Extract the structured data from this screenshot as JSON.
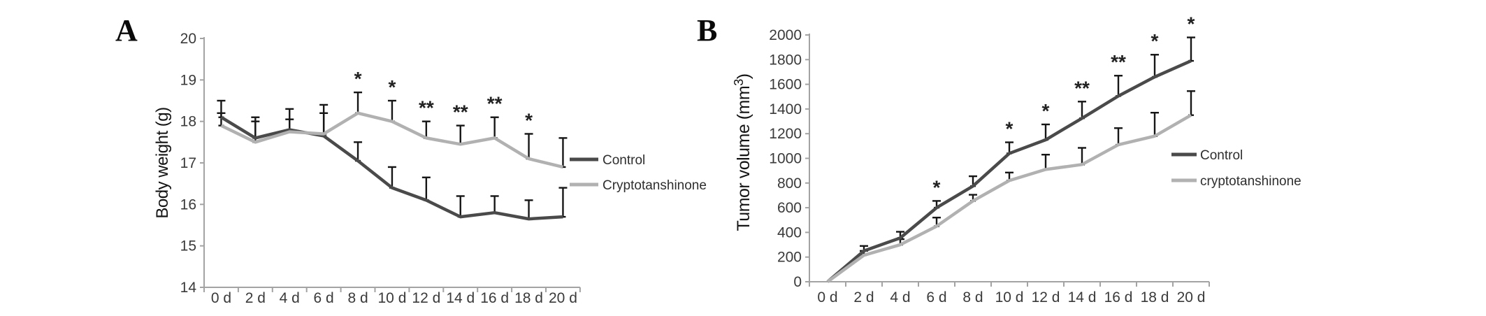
{
  "figure": {
    "background": "#ffffff",
    "colors": {
      "control_line": "#4a4a4a",
      "treatment_line": "#b1b1b1",
      "error_bar": "#161616",
      "axis": "#a3a3a3",
      "tick_text": "#3a3a3a"
    }
  },
  "chart_data": [
    {
      "type": "line",
      "panel_label": "A",
      "ylabel": "Body weight (g)",
      "xlabel": "",
      "ylim": [
        14,
        20
      ],
      "ytick_step": 1,
      "grid": false,
      "legend_position": "right-middle",
      "categories": [
        "0 d",
        "2 d",
        "4 d",
        "6 d",
        "8 d",
        "10 d",
        "12 d",
        "14 d",
        "16 d",
        "18 d",
        "20 d"
      ],
      "series": [
        {
          "name": "Control",
          "color": "#4a4a4a",
          "values": [
            18.1,
            17.6,
            17.8,
            17.65,
            17.05,
            16.4,
            16.1,
            15.7,
            15.8,
            15.65,
            15.7
          ],
          "err_top": [
            18.5,
            18.1,
            18.3,
            18.4,
            17.5,
            16.9,
            16.65,
            16.2,
            16.2,
            16.1,
            16.4
          ]
        },
        {
          "name": "Cryptotanshinone",
          "color": "#b1b1b1",
          "values": [
            17.9,
            17.5,
            17.75,
            17.7,
            18.2,
            18.0,
            17.6,
            17.45,
            17.6,
            17.1,
            16.9
          ],
          "err_top": [
            18.2,
            18.0,
            18.05,
            18.2,
            18.7,
            18.5,
            18.0,
            17.9,
            18.1,
            17.7,
            17.6
          ]
        }
      ],
      "significance": {
        "above_series_index": 1,
        "marks": [
          {
            "index": 4,
            "category": "8 d",
            "label": "*"
          },
          {
            "index": 5,
            "category": "10 d",
            "label": "*"
          },
          {
            "index": 6,
            "category": "12 d",
            "label": "**"
          },
          {
            "index": 7,
            "category": "14 d",
            "label": "**"
          },
          {
            "index": 8,
            "category": "16 d",
            "label": "**"
          },
          {
            "index": 9,
            "category": "18 d",
            "label": "*"
          }
        ]
      }
    },
    {
      "type": "line",
      "panel_label": "B",
      "ylabel": "Tumor volume (mm³)",
      "xlabel": "",
      "ylim": [
        0,
        2000
      ],
      "ytick_step": 200,
      "grid": false,
      "legend_position": "right-middle",
      "categories": [
        "0 d",
        "2 d",
        "4 d",
        "6 d",
        "8 d",
        "10 d",
        "12 d",
        "14 d",
        "16 d",
        "18 d",
        "20 d"
      ],
      "series": [
        {
          "name": "Control",
          "color": "#4a4a4a",
          "values": [
            0,
            250,
            355,
            600,
            775,
            1040,
            1150,
            1325,
            1505,
            1660,
            1790
          ],
          "err_top": [
            0,
            290,
            405,
            655,
            855,
            1130,
            1275,
            1460,
            1670,
            1840,
            1980
          ]
        },
        {
          "name": "cryptotanshinone",
          "color": "#b1b1b1",
          "values": [
            0,
            215,
            300,
            450,
            655,
            820,
            910,
            950,
            1110,
            1180,
            1350
          ],
          "err_top": [
            0,
            250,
            345,
            520,
            705,
            885,
            1030,
            1085,
            1245,
            1370,
            1545
          ]
        }
      ],
      "significance": {
        "above_series_index": 0,
        "marks": [
          {
            "index": 3,
            "category": "6 d",
            "label": "*"
          },
          {
            "index": 5,
            "category": "10 d",
            "label": "*"
          },
          {
            "index": 6,
            "category": "12 d",
            "label": "*"
          },
          {
            "index": 7,
            "category": "14 d",
            "label": "**"
          },
          {
            "index": 8,
            "category": "16 d",
            "label": "**"
          },
          {
            "index": 9,
            "category": "18 d",
            "label": "*"
          },
          {
            "index": 10,
            "category": "20 d",
            "label": "*"
          }
        ]
      }
    }
  ]
}
